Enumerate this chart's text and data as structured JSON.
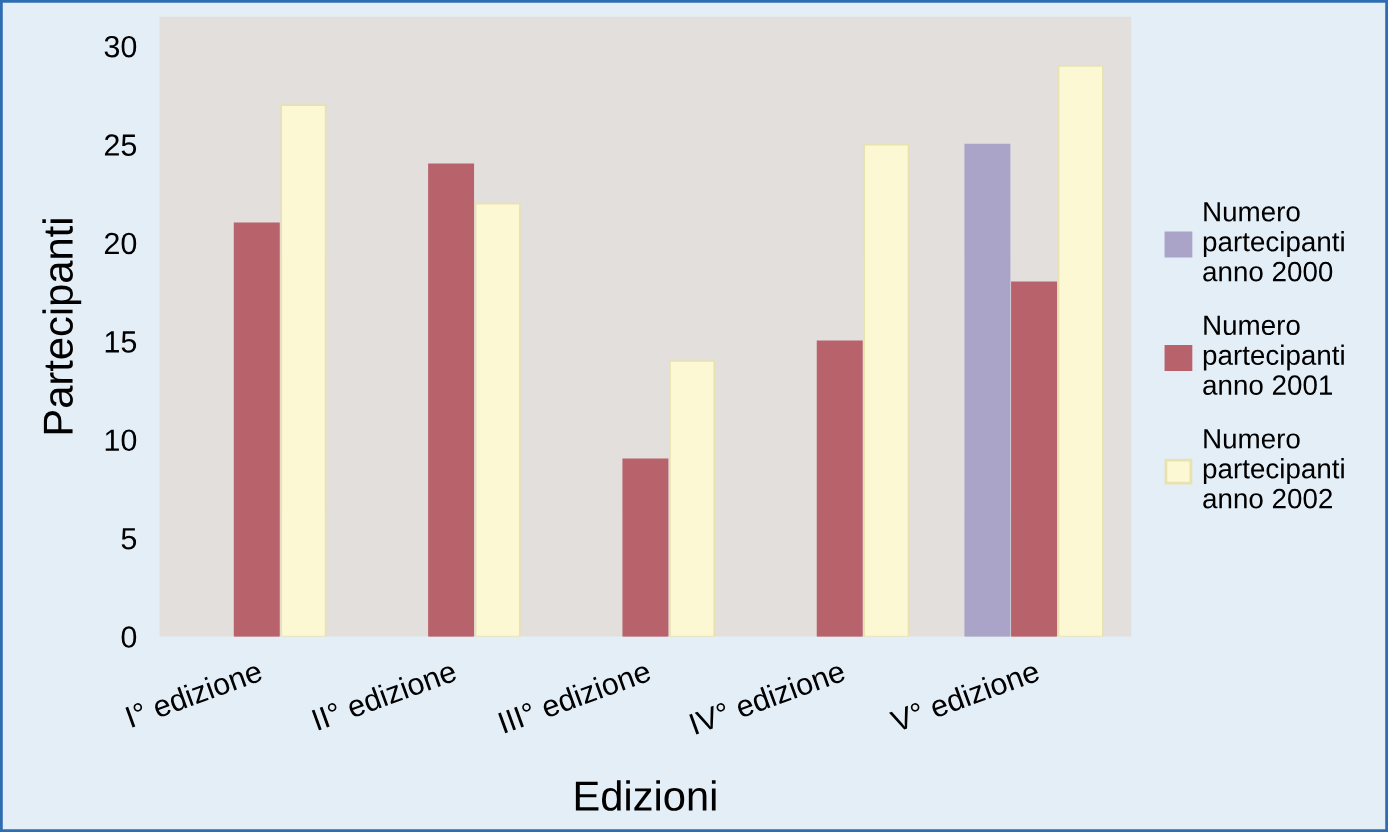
{
  "chart_data": {
    "type": "bar",
    "xlabel": "Edizioni",
    "ylabel": "Partecipanti",
    "categories": [
      "I° edizione",
      "II° edizione",
      "III° edizione",
      "IV° edizione",
      "V° edizione"
    ],
    "series": [
      {
        "name": "Numero\npartecipanti\nanno 2000",
        "color": "#aaa4c8",
        "values": [
          null,
          null,
          null,
          null,
          25
        ]
      },
      {
        "name": "Numero\npartecipanti\nanno 2001",
        "color": "#b8636c",
        "values": [
          21,
          24,
          9,
          15,
          18
        ]
      },
      {
        "name": "Numero\npartecipanti\nanno 2002",
        "color": "#fcf8d4",
        "values": [
          27,
          22,
          14,
          25,
          29
        ]
      }
    ],
    "ylim": [
      0,
      31.5
    ],
    "yticks": [
      0,
      5,
      10,
      15,
      20,
      25,
      30
    ],
    "grid": false,
    "legend": "right"
  }
}
